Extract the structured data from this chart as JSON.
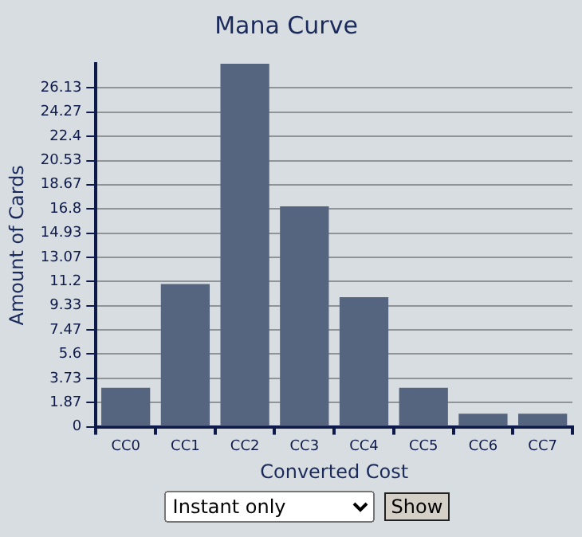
{
  "chart_data": {
    "type": "bar",
    "title": "Mana Curve",
    "xlabel": "Converted Cost",
    "ylabel": "Amount of Cards",
    "categories": [
      "CC0",
      "CC1",
      "CC2",
      "CC3",
      "CC4",
      "CC5",
      "CC6",
      "CC7"
    ],
    "values": [
      3,
      11,
      28,
      17,
      10,
      3,
      1,
      1
    ],
    "color": "#56657f",
    "ylim": [
      0,
      28
    ],
    "yticks": [
      0,
      1.87,
      3.73,
      5.6,
      7.47,
      9.33,
      11.2,
      13.07,
      14.93,
      16.8,
      18.67,
      20.53,
      22.4,
      24.27,
      26.13
    ],
    "grid": "y",
    "legend": false,
    "annotations": [
      "Instant only",
      "Show"
    ]
  }
}
